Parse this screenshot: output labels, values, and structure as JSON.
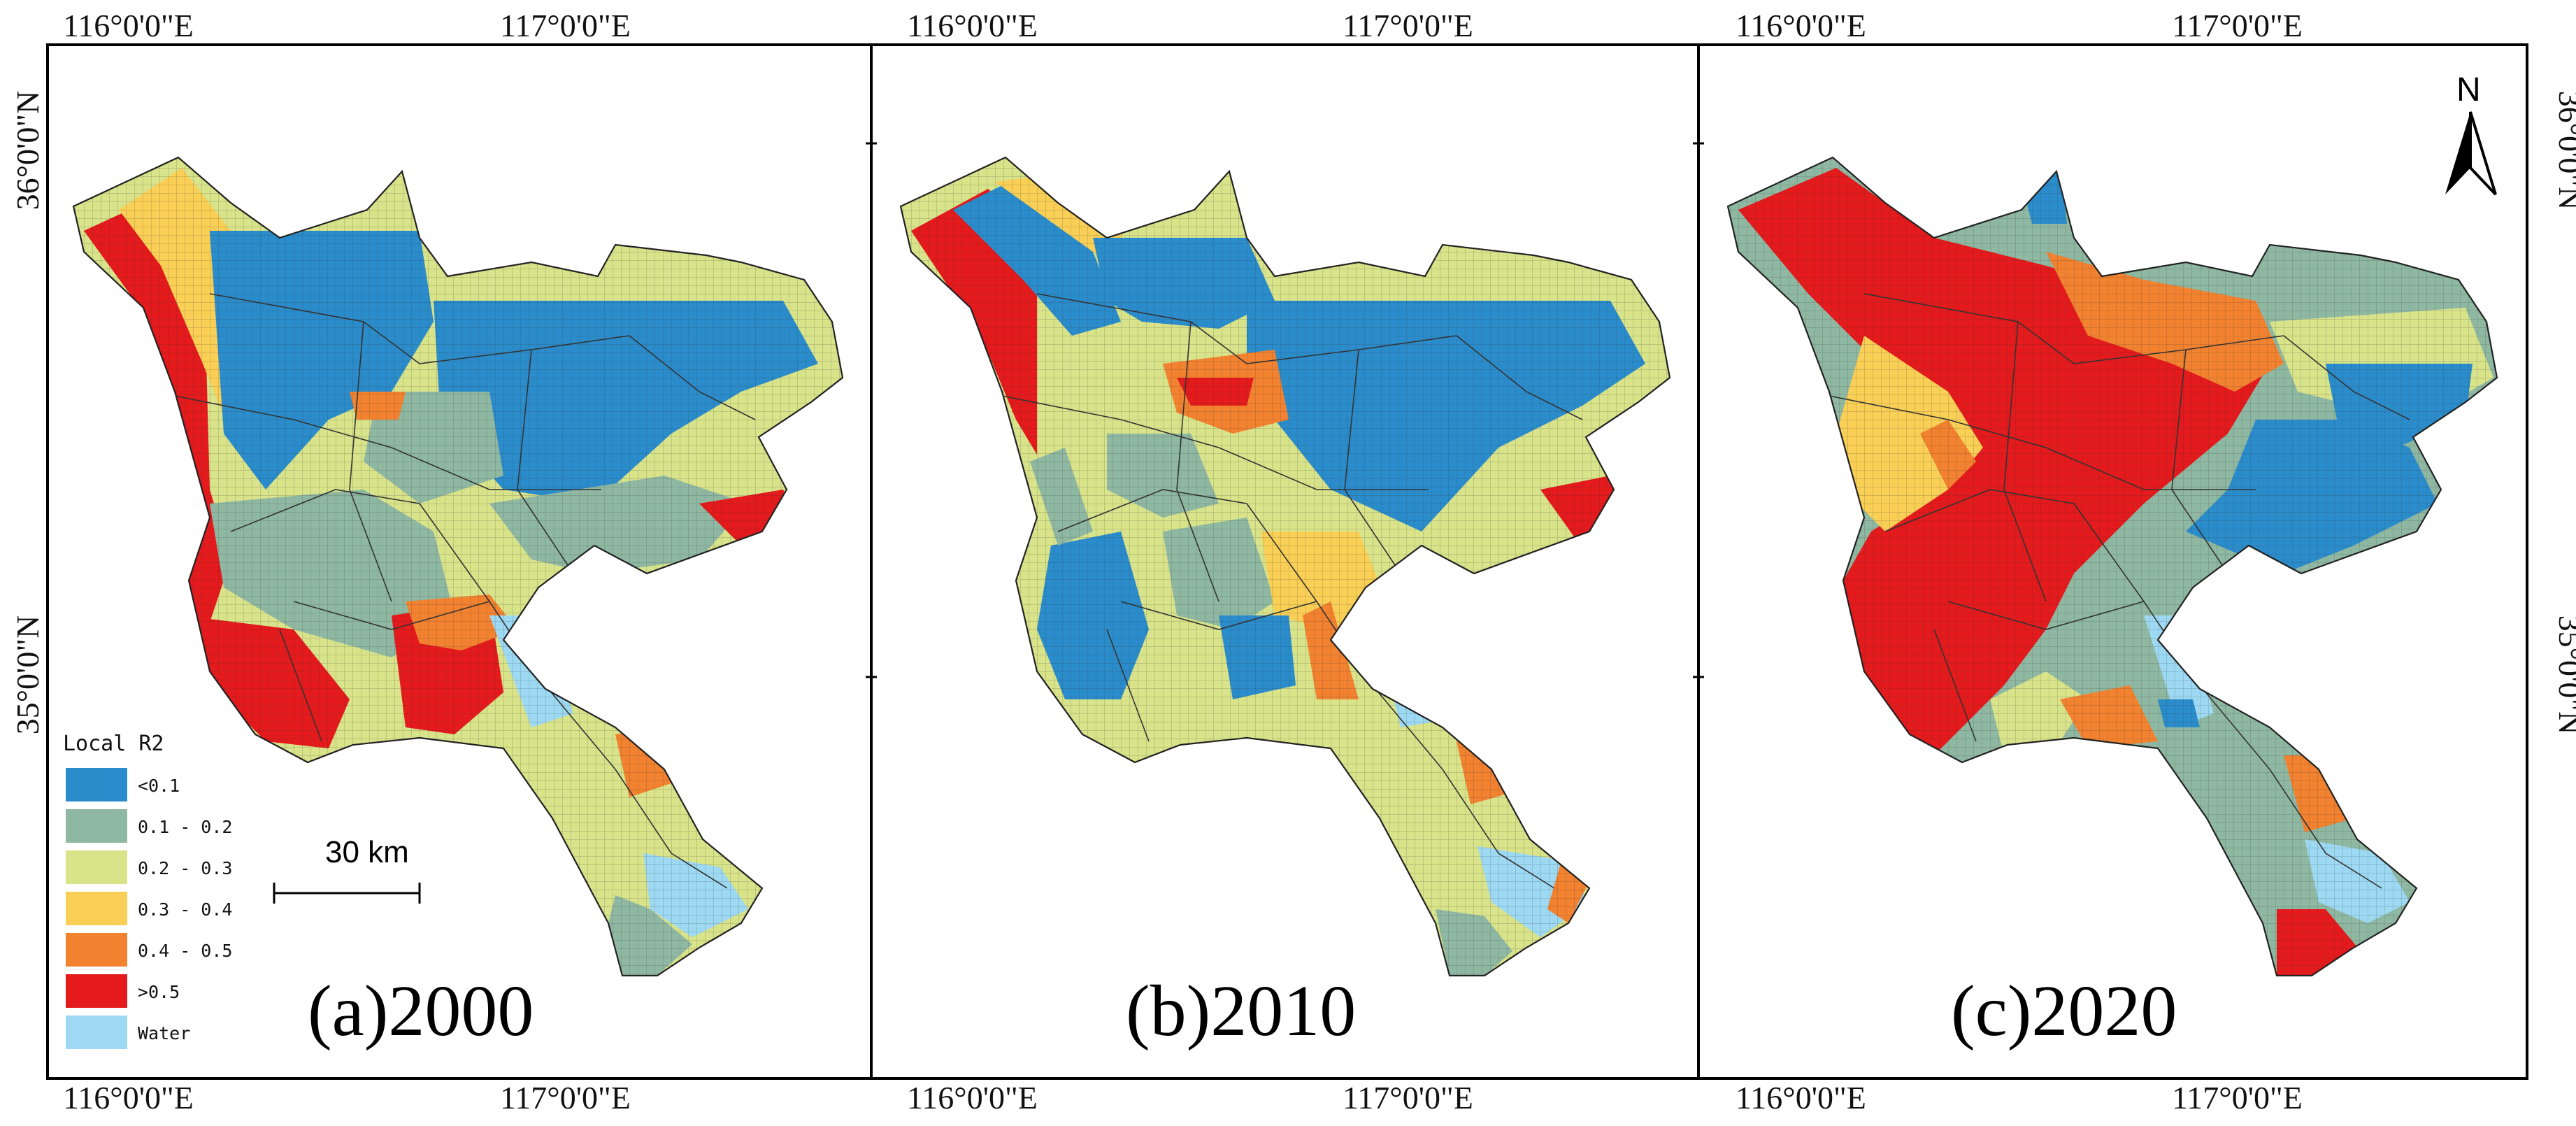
{
  "figure": {
    "panels": [
      {
        "id": "a",
        "label": "(a)2000",
        "year": 2000,
        "style": "c2000"
      },
      {
        "id": "b",
        "label": "(b)2010",
        "year": 2010,
        "style": "c2010"
      },
      {
        "id": "c",
        "label": "(c)2020",
        "year": 2020,
        "style": "c2020"
      }
    ],
    "axes": {
      "lon_labels": [
        "116°0'0\"E",
        "117°0'0\"E"
      ],
      "lat_labels": [
        "36°0'0\"N",
        "35°0'0\"N"
      ]
    },
    "legend": {
      "title": "Local R2",
      "items": [
        {
          "label": "<0.1",
          "color": "#2b8ccb"
        },
        {
          "label": "0.1 - 0.2",
          "color": "#8fb8a2"
        },
        {
          "label": "0.2 - 0.3",
          "color": "#d8e38a"
        },
        {
          "label": "0.3 - 0.4",
          "color": "#f9cf55"
        },
        {
          "label": "0.4 - 0.5",
          "color": "#f2822f"
        },
        {
          "label": ">0.5",
          "color": "#e41a1c"
        },
        {
          "label": "Water",
          "color": "#9dd9f3"
        }
      ]
    },
    "scale_bar": {
      "label": "30 km"
    },
    "north_arrow": {
      "label": "N"
    }
  }
}
